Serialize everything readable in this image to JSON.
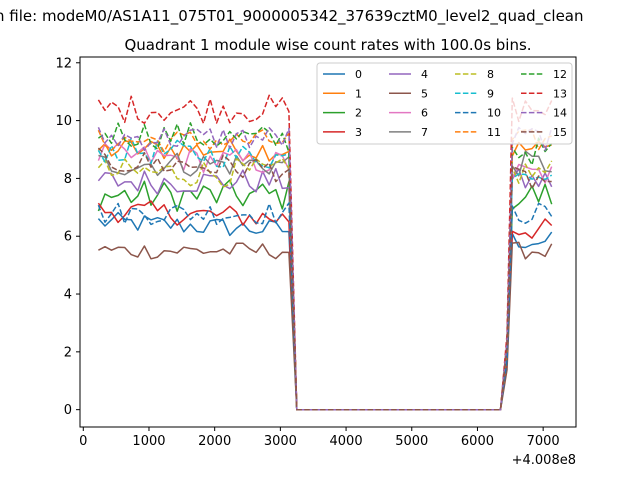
{
  "chart_data": {
    "type": "line",
    "suptitle": "n file: modeM0/AS1A11_075T01_9000005342_37639cztM0_level2_quad_clean",
    "title": "Quadrant 1 module wise count rates with 100.0s bins.",
    "xlabel": "",
    "ylabel": "",
    "x_offset_label": "+4.008e8",
    "xlim": [
      -50,
      7500
    ],
    "ylim": [
      -0.6,
      12.2
    ],
    "xticks": [
      0,
      1000,
      2000,
      3000,
      4000,
      5000,
      6000,
      7000
    ],
    "xtick_labels": [
      "0",
      "1000",
      "2000",
      "3000",
      "4000",
      "5000",
      "6000",
      "7000"
    ],
    "yticks": [
      0,
      2,
      4,
      6,
      8,
      10,
      12
    ],
    "ytick_labels": [
      "0",
      "2",
      "4",
      "6",
      "8",
      "10",
      "12"
    ],
    "grid": false,
    "legend_position": "top-right",
    "legend_columns": 4,
    "segments": {
      "x_start": 230,
      "x_step": 100,
      "active1_count": 30,
      "x_gap_start": 3250,
      "x_gap_end": 6350,
      "active2_start": 6530,
      "active2_count": 7
    },
    "series": [
      {
        "name": "0",
        "color": "#1f77b4",
        "dash": "solid",
        "level": 6.5,
        "amp": 0.35
      },
      {
        "name": "1",
        "color": "#ff7f0e",
        "dash": "solid",
        "level": 9.0,
        "amp": 0.4
      },
      {
        "name": "2",
        "color": "#2ca02c",
        "dash": "solid",
        "level": 7.4,
        "amp": 0.55
      },
      {
        "name": "3",
        "color": "#d62728",
        "dash": "solid",
        "level": 6.9,
        "amp": 0.4
      },
      {
        "name": "4",
        "color": "#9467bd",
        "dash": "solid",
        "level": 7.9,
        "amp": 0.45
      },
      {
        "name": "5",
        "color": "#8c564b",
        "dash": "solid",
        "level": 5.5,
        "amp": 0.3
      },
      {
        "name": "6",
        "color": "#e377c2",
        "dash": "solid",
        "level": 8.8,
        "amp": 0.45
      },
      {
        "name": "7",
        "color": "#7f7f7f",
        "dash": "solid",
        "level": 8.5,
        "amp": 0.45
      },
      {
        "name": "8",
        "color": "#bcbd22",
        "dash": "dashed",
        "level": 8.2,
        "amp": 0.5
      },
      {
        "name": "9",
        "color": "#17becf",
        "dash": "dashed",
        "level": 9.0,
        "amp": 0.45
      },
      {
        "name": "10",
        "color": "#1f77b4",
        "dash": "dashed",
        "level": 6.8,
        "amp": 0.4
      },
      {
        "name": "11",
        "color": "#ff7f0e",
        "dash": "dashed",
        "level": 9.3,
        "amp": 0.4
      },
      {
        "name": "12",
        "color": "#2ca02c",
        "dash": "dashed",
        "level": 9.6,
        "amp": 0.5
      },
      {
        "name": "13",
        "color": "#d62728",
        "dash": "dashed",
        "level": 10.4,
        "amp": 0.5
      },
      {
        "name": "14",
        "color": "#9467bd",
        "dash": "dashed",
        "level": 9.4,
        "amp": 0.45
      },
      {
        "name": "15",
        "color": "#8c564b",
        "dash": "dashed",
        "level": 8.6,
        "amp": 0.45
      }
    ]
  }
}
